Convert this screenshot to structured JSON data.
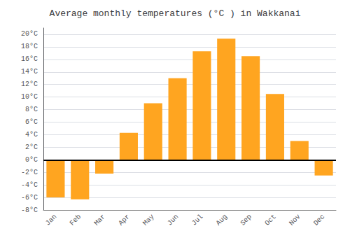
{
  "chart_data": {
    "type": "bar",
    "title": "Average monthly temperatures (°C ) in Wakkanai",
    "categories": [
      "Jan",
      "Feb",
      "Mar",
      "Apr",
      "May",
      "Jun",
      "Jul",
      "Aug",
      "Sep",
      "Oct",
      "Nov",
      "Dec"
    ],
    "values": [
      -6.0,
      -6.3,
      -2.2,
      4.3,
      9.0,
      13.0,
      17.3,
      19.3,
      16.5,
      10.5,
      3.0,
      -2.5
    ],
    "color": "#FFA520",
    "ylim": [
      -8,
      21
    ],
    "yticks": [
      {
        "value": -8,
        "label": "-8°C"
      },
      {
        "value": -6,
        "label": "-6°C"
      },
      {
        "value": -4,
        "label": "-4°C"
      },
      {
        "value": -2,
        "label": "-2°C"
      },
      {
        "value": 0,
        "label": "0°C"
      },
      {
        "value": 2,
        "label": "2°C"
      },
      {
        "value": 4,
        "label": "4°C"
      },
      {
        "value": 6,
        "label": "6°C"
      },
      {
        "value": 8,
        "label": "8°C"
      },
      {
        "value": 10,
        "label": "10°C"
      },
      {
        "value": 12,
        "label": "12°C"
      },
      {
        "value": 14,
        "label": "14°C"
      },
      {
        "value": 16,
        "label": "16°C"
      },
      {
        "value": 18,
        "label": "18°C"
      },
      {
        "value": 20,
        "label": "20°C"
      }
    ],
    "grid": true
  }
}
